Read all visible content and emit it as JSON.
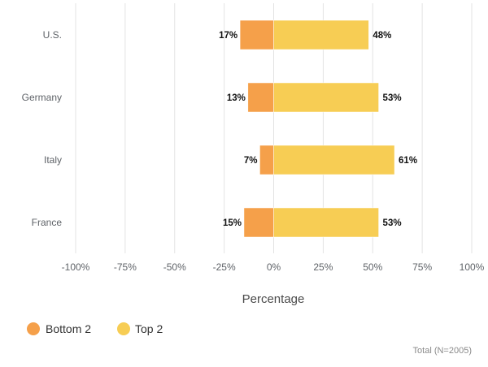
{
  "chart_data": {
    "type": "bar",
    "orientation": "horizontal",
    "stacked": "diverging",
    "categories": [
      "U.S.",
      "Germany",
      "Italy",
      "France"
    ],
    "series": [
      {
        "name": "Bottom 2",
        "values": [
          -17,
          -13,
          -7,
          -15
        ],
        "labels": [
          "17%",
          "13%",
          "7%",
          "15%"
        ],
        "color": "#f5a04a"
      },
      {
        "name": "Top 2",
        "values": [
          48,
          53,
          61,
          53
        ],
        "labels": [
          "48%",
          "53%",
          "61%",
          "53%"
        ],
        "color": "#f7cd54"
      }
    ],
    "xlim": [
      -100,
      100
    ],
    "xticks": [
      -100,
      -75,
      -50,
      -25,
      0,
      25,
      50,
      75,
      100
    ],
    "xtick_labels": [
      "-100%",
      "-75%",
      "-50%",
      "-25%",
      "0%",
      "25%",
      "50%",
      "75%",
      "100%"
    ],
    "xlabel": "Percentage",
    "grid": true,
    "legend_position": "bottom-left",
    "footnote": "Total (N=2005)"
  }
}
